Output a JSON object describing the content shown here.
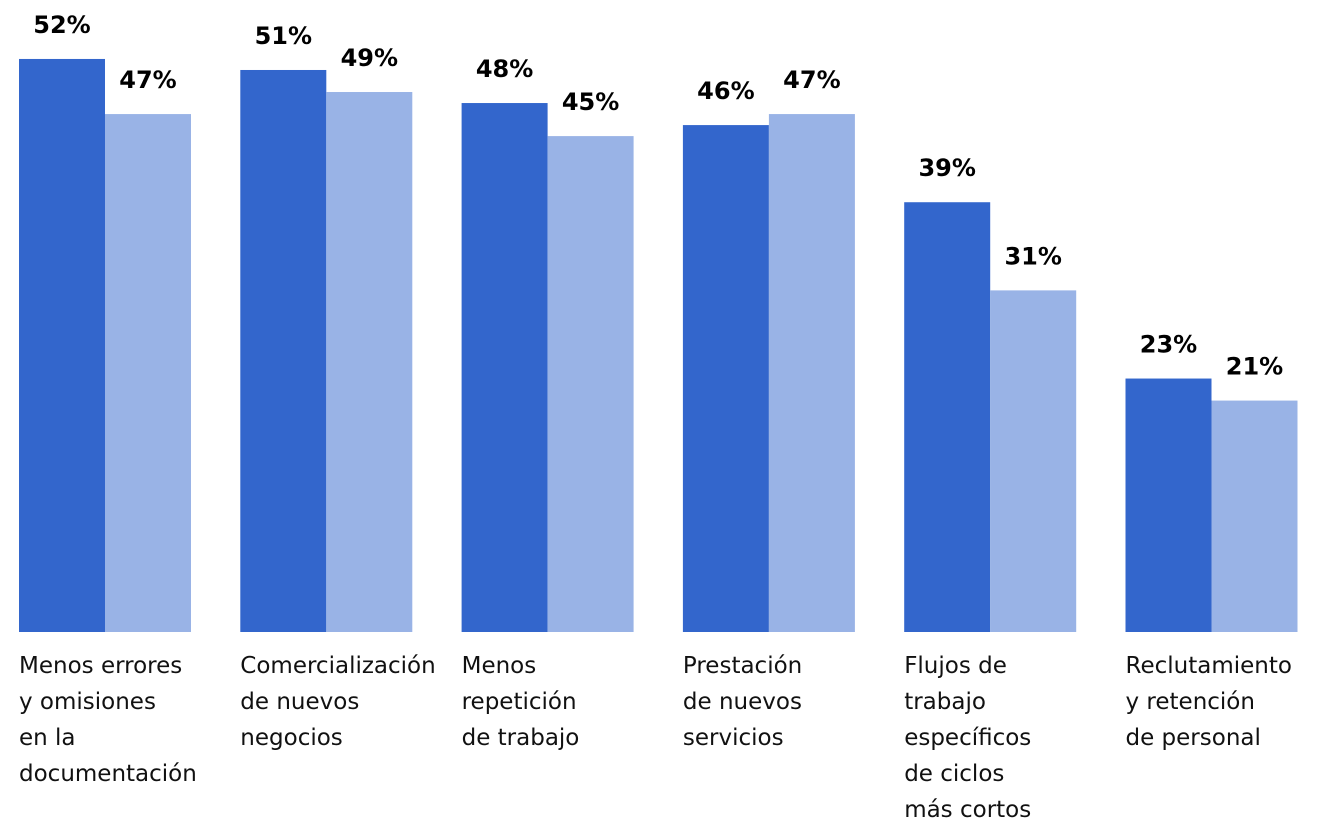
{
  "chart_data": {
    "type": "bar",
    "categories": [
      "Menos errores\ny omisiones\nen la\ndocumentación",
      "Comercialización\nde nuevos\nnegocios",
      "Menos\nrepetición\nde trabajo",
      "Prestación\nde nuevos\nservicios",
      "Flujos de\ntrabajo\nespecíficos\nde ciclos\nmás cortos",
      "Reclutamiento\ny retención\nde personal"
    ],
    "series": [
      {
        "color": "#3366cc",
        "values": [
          52,
          51,
          48,
          46,
          39,
          23
        ],
        "value_labels": [
          "52%",
          "51%",
          "48%",
          "46%",
          "39%",
          "23%"
        ]
      },
      {
        "color": "#99b3e6",
        "values": [
          47,
          49,
          45,
          47,
          31,
          21
        ],
        "value_labels": [
          "47%",
          "49%",
          "45%",
          "47%",
          "31%",
          "21%"
        ]
      }
    ]
  }
}
